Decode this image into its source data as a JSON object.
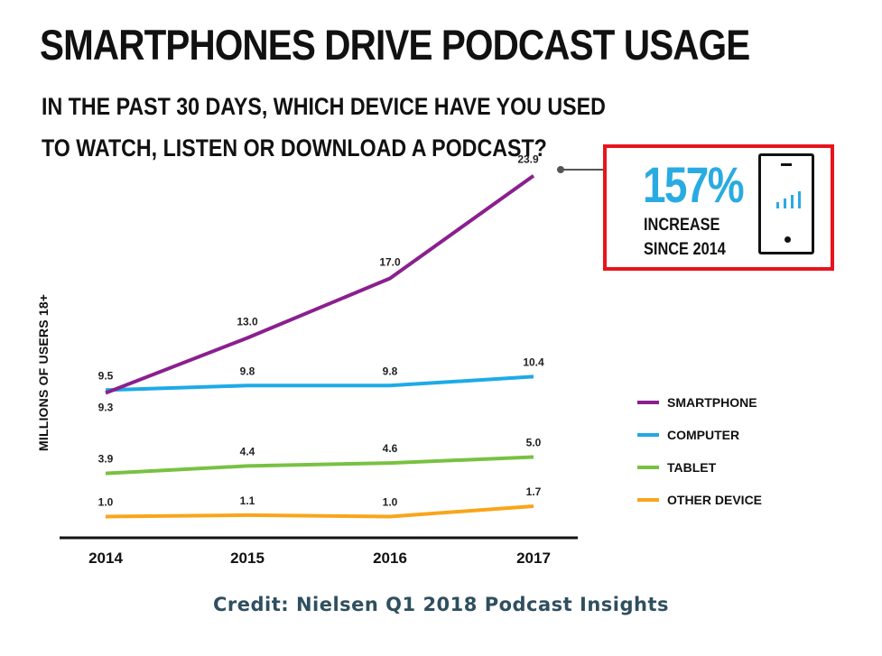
{
  "chart_data": {
    "type": "line",
    "title": "SMARTPHONES DRIVE PODCAST USAGE",
    "subtitle": "IN THE PAST 30 DAYS, WHICH DEVICE HAVE YOU USED TO WATCH, LISTEN OR DOWNLOAD A PODCAST?",
    "ylabel": "MILLIONS OF USERS 18+",
    "xlabel": "",
    "x": [
      "2014",
      "2015",
      "2016",
      "2017"
    ],
    "ylim": [
      0,
      25
    ],
    "grid": false,
    "legend_position": "right",
    "series": [
      {
        "name": "SMARTPHONE",
        "color": "#8b1f8f",
        "values": [
          9.3,
          13.0,
          17.0,
          23.9
        ],
        "labels": [
          "9.3",
          "13.0",
          "17.0",
          "23.9"
        ]
      },
      {
        "name": "COMPUTER",
        "color": "#1eaae7",
        "values": [
          9.5,
          9.8,
          9.8,
          10.4
        ],
        "labels": [
          "9.5",
          "9.8",
          "9.8",
          "10.4"
        ]
      },
      {
        "name": "TABLET",
        "color": "#78c142",
        "values": [
          3.9,
          4.4,
          4.6,
          5.0
        ],
        "labels": [
          "3.9",
          "4.4",
          "4.6",
          "5.0"
        ]
      },
      {
        "name": "OTHER DEVICE",
        "color": "#f9a51a",
        "values": [
          1.0,
          1.1,
          1.0,
          1.7
        ],
        "labels": [
          "1.0",
          "1.1",
          "1.0",
          "1.7"
        ]
      }
    ],
    "annotation": {
      "percent": "157%",
      "line1": "INCREASE",
      "line2": "SINCE 2014",
      "border_color": "#e8141d",
      "accent_color": "#29abe2",
      "icon": "smartphone-signal-icon"
    }
  },
  "credit": "Credit: Nielsen Q1 2018 Podcast Insights"
}
